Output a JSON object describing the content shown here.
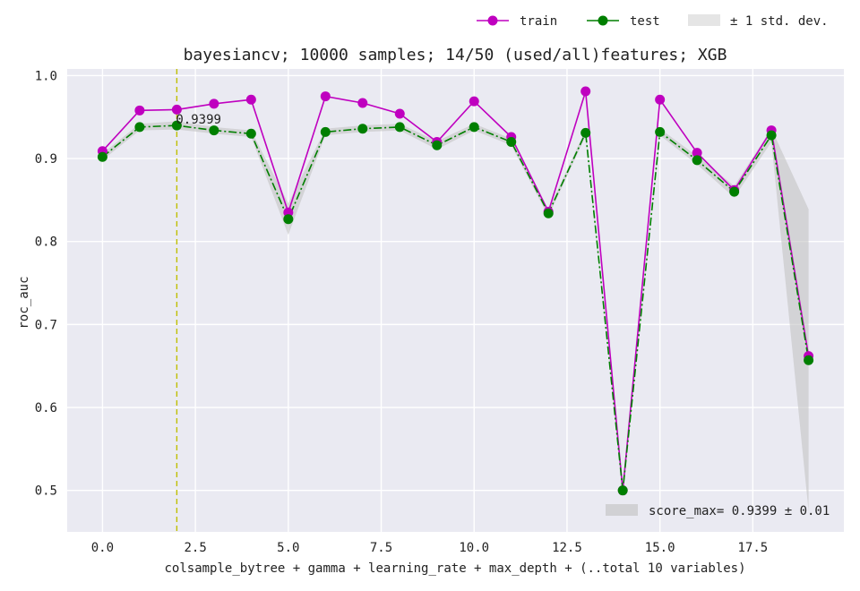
{
  "chart_data": {
    "type": "line",
    "title": "bayesiancv; 10000 samples; 14/50 (used/all)features; XGB",
    "xlabel": "colsample_bytree + gamma + learning_rate + max_depth + (..total 10 variables)",
    "ylabel": "roc_auc",
    "xlim": [
      -0.95,
      19.95
    ],
    "ylim": [
      0.45,
      1.008
    ],
    "xticks": [
      0.0,
      2.5,
      5.0,
      7.5,
      10.0,
      12.5,
      15.0,
      17.5
    ],
    "xtick_labels": [
      "0.0",
      "2.5",
      "5.0",
      "7.5",
      "10.0",
      "12.5",
      "15.0",
      "17.5"
    ],
    "yticks": [
      0.5,
      0.6,
      0.7,
      0.8,
      0.9,
      1.0
    ],
    "ytick_labels": [
      "0.5",
      "0.6",
      "0.7",
      "0.8",
      "0.9",
      "1.0"
    ],
    "grid": true,
    "x": [
      0,
      1,
      2,
      3,
      4,
      5,
      6,
      7,
      8,
      9,
      10,
      11,
      12,
      13,
      14,
      15,
      16,
      17,
      18,
      19
    ],
    "series": [
      {
        "name": "train",
        "color": "#bf00bf",
        "style": "solid",
        "values": [
          0.909,
          0.958,
          0.959,
          0.966,
          0.971,
          0.835,
          0.975,
          0.967,
          0.954,
          0.92,
          0.969,
          0.926,
          0.836,
          0.981,
          0.5,
          0.971,
          0.907,
          0.862,
          0.934,
          0.662
        ]
      },
      {
        "name": "test",
        "color": "#007f00",
        "style": "dashdot",
        "values": [
          0.902,
          0.938,
          0.9399,
          0.934,
          0.93,
          0.827,
          0.932,
          0.936,
          0.938,
          0.916,
          0.938,
          0.92,
          0.834,
          0.931,
          0.5,
          0.932,
          0.898,
          0.86,
          0.928,
          0.657
        ]
      }
    ],
    "band": {
      "name": "± 1 std. dev.",
      "color": "#bfbfbf",
      "lower": [
        0.898,
        0.934,
        0.935,
        0.93,
        0.926,
        0.808,
        0.928,
        0.932,
        0.934,
        0.911,
        0.934,
        0.916,
        0.83,
        0.927,
        0.497,
        0.928,
        0.893,
        0.853,
        0.92,
        0.475
      ],
      "upper": [
        0.906,
        0.942,
        0.945,
        0.938,
        0.934,
        0.846,
        0.936,
        0.94,
        0.942,
        0.921,
        0.942,
        0.924,
        0.838,
        0.935,
        0.503,
        0.936,
        0.903,
        0.867,
        0.936,
        0.839
      ]
    },
    "best": {
      "x": 2,
      "label": "0.9399",
      "line_color": "#bfbf00"
    },
    "score_text": "score_max= 0.9399 ± 0.01",
    "legend_placement": "top-right"
  }
}
